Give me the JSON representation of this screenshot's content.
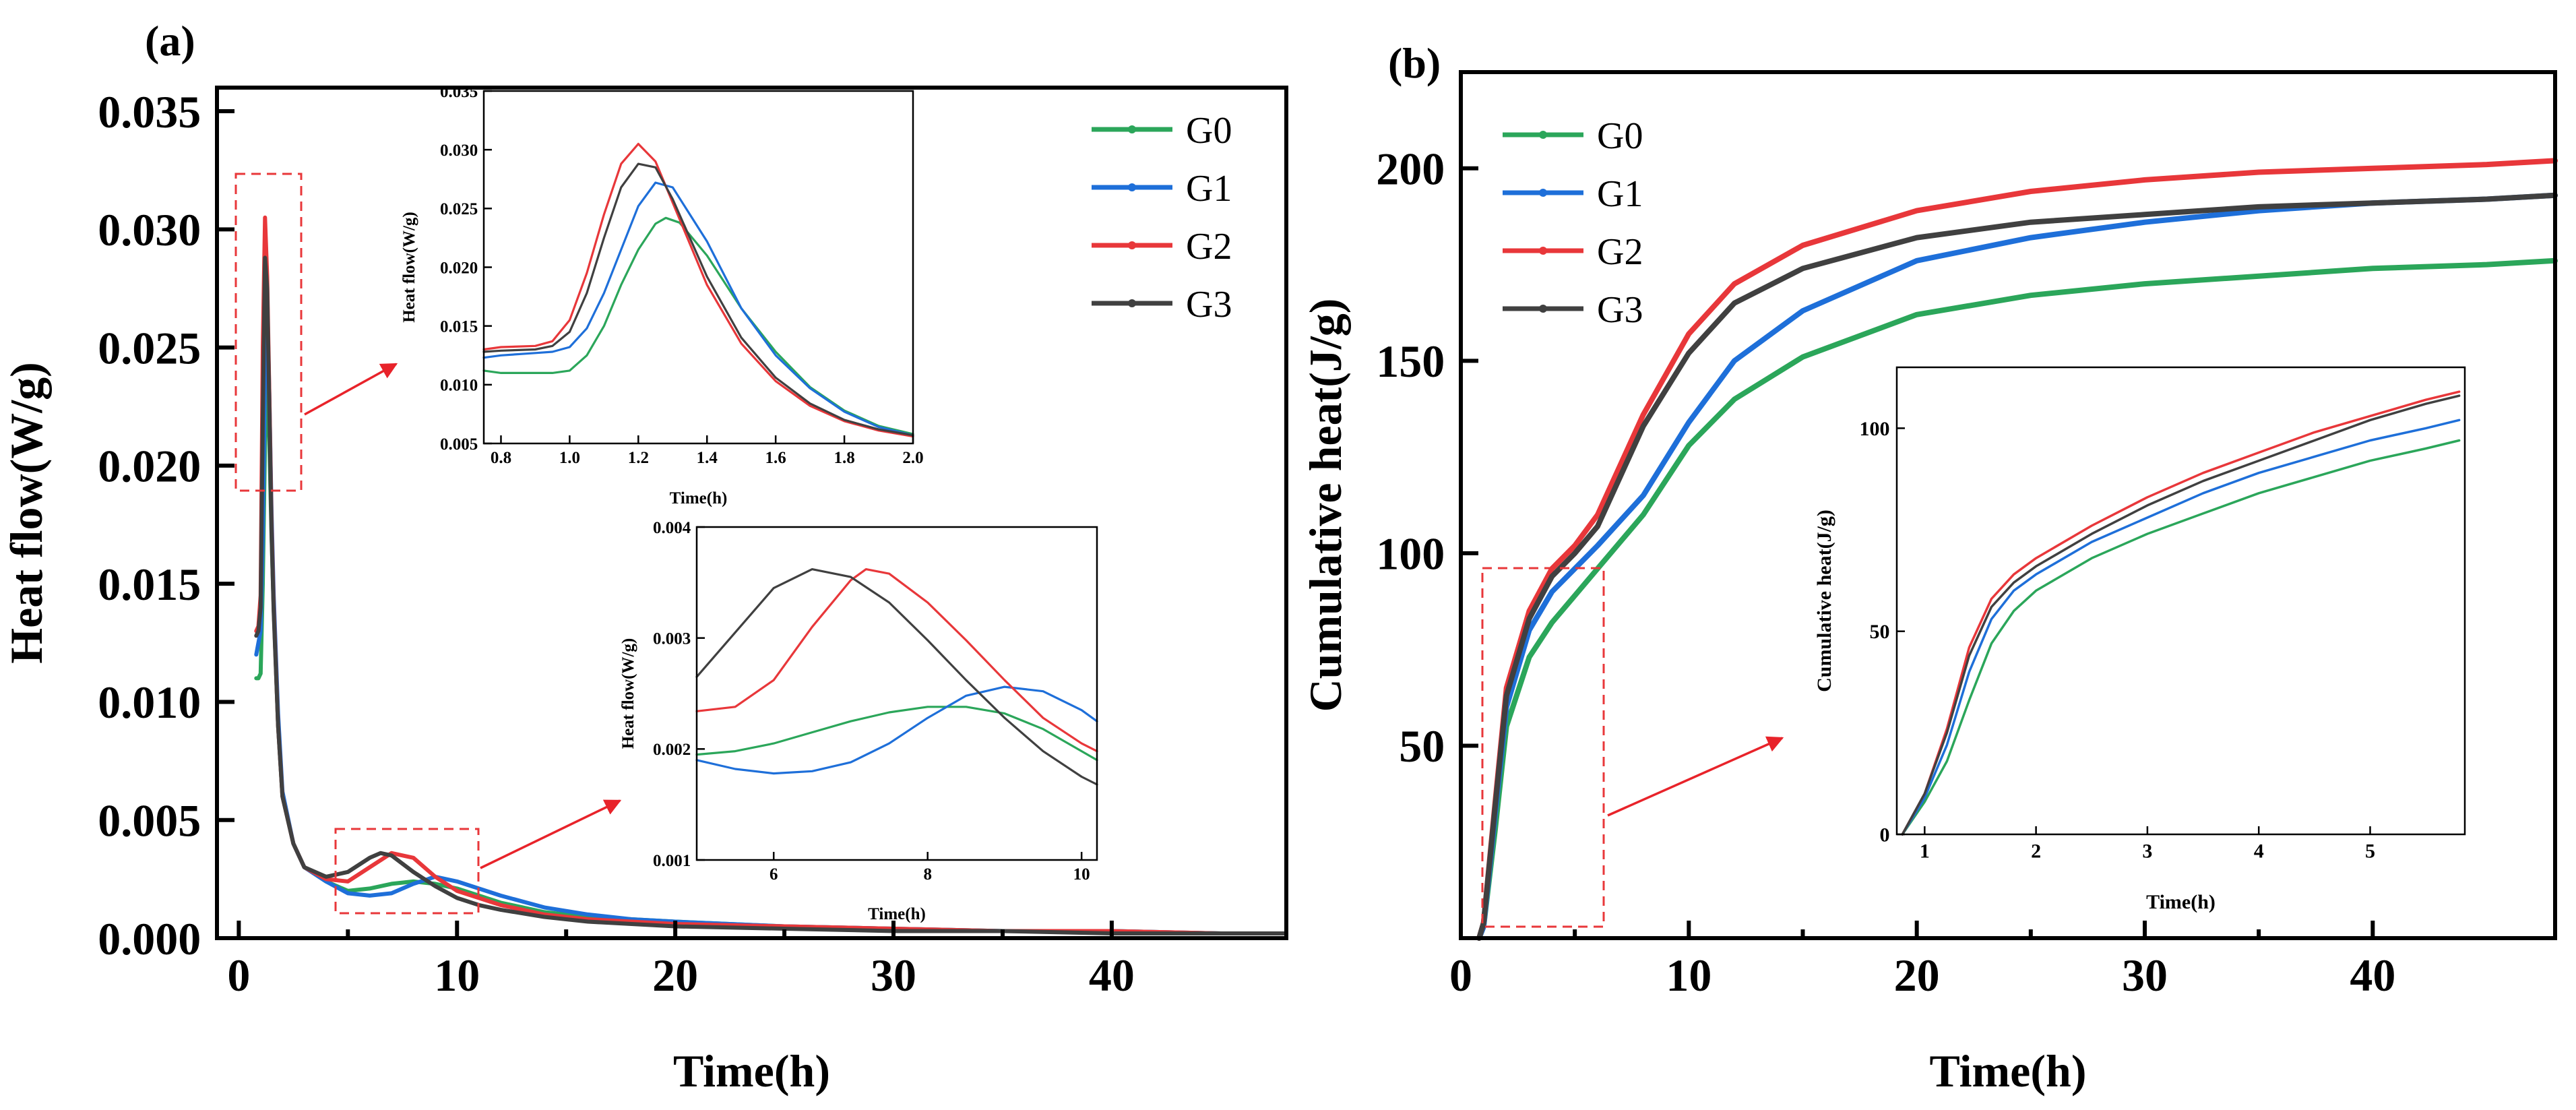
{
  "colors": {
    "G0": "#2BA65A",
    "G1": "#1E6FD9",
    "G2": "#E8373A",
    "G3": "#404040",
    "box": "#E8373A",
    "arrow": "#E8232A"
  },
  "chart_data": [
    {
      "id": "a-main",
      "panel_label": "(a)",
      "type": "line",
      "xlabel": "Time(h)",
      "ylabel": "Heat flow(W/g)",
      "xlim": [
        -1,
        48
      ],
      "ylim": [
        0,
        0.036
      ],
      "xticks": [
        "0",
        "10",
        "20",
        "30",
        "40"
      ],
      "yticks": [
        "0.000",
        "0.005",
        "0.010",
        "0.015",
        "0.020",
        "0.025",
        "0.030",
        "0.035"
      ],
      "legend": [
        "G0",
        "G1",
        "G2",
        "G3"
      ],
      "legend_position": "top-right",
      "series": [
        {
          "name": "G0",
          "x": [
            0.8,
            0.9,
            1.0,
            1.1,
            1.2,
            1.25,
            1.3,
            1.4,
            1.5,
            1.6,
            1.8,
            2.0,
            2.5,
            3,
            4,
            5,
            6,
            7,
            8,
            9,
            10,
            11,
            12,
            14,
            16,
            18,
            20,
            25,
            30,
            35,
            40,
            45,
            48
          ],
          "y": [
            0.011,
            0.011,
            0.0112,
            0.015,
            0.021,
            0.0242,
            0.0238,
            0.021,
            0.017,
            0.014,
            0.009,
            0.006,
            0.004,
            0.003,
            0.0024,
            0.002,
            0.0021,
            0.0023,
            0.0024,
            0.0023,
            0.0021,
            0.0018,
            0.0015,
            0.0011,
            0.0009,
            0.0008,
            0.0007,
            0.0005,
            0.0004,
            0.0003,
            0.0003,
            0.0002,
            0.0002
          ]
        },
        {
          "name": "G1",
          "x": [
            0.8,
            0.9,
            1.0,
            1.1,
            1.2,
            1.27,
            1.3,
            1.4,
            1.5,
            1.6,
            1.8,
            2.0,
            2.5,
            3,
            4,
            5,
            6,
            7,
            8,
            9,
            10,
            11,
            12,
            14,
            16,
            18,
            20,
            25,
            30,
            35,
            40,
            45,
            48
          ],
          "y": [
            0.012,
            0.0125,
            0.013,
            0.017,
            0.024,
            0.0272,
            0.027,
            0.023,
            0.018,
            0.0145,
            0.0095,
            0.0062,
            0.004,
            0.003,
            0.0024,
            0.0019,
            0.0018,
            0.0019,
            0.0023,
            0.0026,
            0.0024,
            0.0021,
            0.0018,
            0.0013,
            0.001,
            0.0008,
            0.0007,
            0.0005,
            0.0004,
            0.0003,
            0.0003,
            0.0002,
            0.0002
          ]
        },
        {
          "name": "G2",
          "x": [
            0.8,
            0.9,
            1.0,
            1.1,
            1.2,
            1.3,
            1.4,
            1.5,
            1.6,
            1.8,
            2.0,
            2.5,
            3,
            4,
            5,
            6,
            7,
            8,
            9,
            10,
            11,
            12,
            14,
            16,
            18,
            20,
            25,
            30,
            35,
            40,
            45,
            48
          ],
          "y": [
            0.013,
            0.0132,
            0.0145,
            0.025,
            0.0305,
            0.028,
            0.023,
            0.0175,
            0.014,
            0.009,
            0.006,
            0.004,
            0.003,
            0.0025,
            0.0024,
            0.003,
            0.0036,
            0.0034,
            0.0026,
            0.002,
            0.0017,
            0.0014,
            0.001,
            0.0008,
            0.0007,
            0.0006,
            0.0005,
            0.0004,
            0.0003,
            0.0003,
            0.0002,
            0.0002
          ]
        },
        {
          "name": "G3",
          "x": [
            0.8,
            0.9,
            1.0,
            1.1,
            1.2,
            1.3,
            1.4,
            1.5,
            1.6,
            1.8,
            2.0,
            2.5,
            3,
            4,
            5,
            6,
            6.5,
            7,
            8,
            9,
            10,
            11,
            12,
            14,
            16,
            18,
            20,
            25,
            30,
            35,
            40,
            45,
            48
          ],
          "y": [
            0.0128,
            0.013,
            0.014,
            0.022,
            0.0288,
            0.0275,
            0.0225,
            0.0172,
            0.0138,
            0.009,
            0.006,
            0.004,
            0.003,
            0.0026,
            0.0028,
            0.0034,
            0.0036,
            0.0035,
            0.0028,
            0.0022,
            0.0017,
            0.0014,
            0.0012,
            0.0009,
            0.0007,
            0.0006,
            0.0005,
            0.0004,
            0.0003,
            0.0003,
            0.0002,
            0.0002,
            0.0002
          ]
        }
      ]
    },
    {
      "id": "a-inset1",
      "type": "line",
      "xlabel": "Time(h)",
      "ylabel": "Heat flow(W/g)",
      "xlim": [
        0.75,
        2.0
      ],
      "ylim": [
        0.005,
        0.035
      ],
      "xticks": [
        "0.8",
        "1.0",
        "1.2",
        "1.4",
        "1.6",
        "1.8",
        "2.0"
      ],
      "yticks": [
        "0.005",
        "0.010",
        "0.015",
        "0.020",
        "0.025",
        "0.030",
        "0.035"
      ],
      "series": [
        {
          "name": "G0",
          "x": [
            0.75,
            0.8,
            0.9,
            0.95,
            1.0,
            1.05,
            1.1,
            1.15,
            1.2,
            1.25,
            1.28,
            1.32,
            1.4,
            1.5,
            1.6,
            1.7,
            1.8,
            1.9,
            2.0
          ],
          "y": [
            0.0112,
            0.011,
            0.011,
            0.011,
            0.0112,
            0.0125,
            0.015,
            0.0185,
            0.0215,
            0.0237,
            0.0242,
            0.0238,
            0.021,
            0.0165,
            0.0128,
            0.0098,
            0.0078,
            0.0065,
            0.0058
          ]
        },
        {
          "name": "G1",
          "x": [
            0.75,
            0.8,
            0.9,
            0.95,
            1.0,
            1.05,
            1.1,
            1.15,
            1.2,
            1.25,
            1.3,
            1.4,
            1.5,
            1.6,
            1.7,
            1.8,
            1.9,
            2.0
          ],
          "y": [
            0.0123,
            0.0125,
            0.0127,
            0.0128,
            0.0132,
            0.0148,
            0.0178,
            0.0215,
            0.0252,
            0.0272,
            0.0268,
            0.0222,
            0.0165,
            0.0125,
            0.0097,
            0.0077,
            0.0064,
            0.0057
          ]
        },
        {
          "name": "G2",
          "x": [
            0.75,
            0.8,
            0.9,
            0.95,
            1.0,
            1.05,
            1.1,
            1.15,
            1.2,
            1.25,
            1.3,
            1.4,
            1.5,
            1.6,
            1.7,
            1.8,
            1.9,
            2.0
          ],
          "y": [
            0.013,
            0.0132,
            0.0133,
            0.0137,
            0.0155,
            0.0195,
            0.0245,
            0.0288,
            0.0305,
            0.029,
            0.0255,
            0.0185,
            0.0135,
            0.0103,
            0.0082,
            0.0069,
            0.0061,
            0.0056
          ]
        },
        {
          "name": "G3",
          "x": [
            0.75,
            0.8,
            0.9,
            0.95,
            1.0,
            1.05,
            1.1,
            1.15,
            1.2,
            1.25,
            1.3,
            1.4,
            1.5,
            1.6,
            1.7,
            1.8,
            1.9,
            2.0
          ],
          "y": [
            0.0128,
            0.0129,
            0.013,
            0.0133,
            0.0145,
            0.0178,
            0.0225,
            0.0268,
            0.0288,
            0.0285,
            0.0258,
            0.0192,
            0.014,
            0.0106,
            0.0084,
            0.007,
            0.0062,
            0.0057
          ]
        }
      ]
    },
    {
      "id": "a-inset2",
      "type": "line",
      "xlabel": "Time(h)",
      "ylabel": "Heat flow(W/g)",
      "xlim": [
        5,
        10.2
      ],
      "ylim": [
        0.001,
        0.004
      ],
      "xticks": [
        "6",
        "8",
        "10"
      ],
      "yticks": [
        "0.001",
        "0.002",
        "0.003",
        "0.004"
      ],
      "series": [
        {
          "name": "G0",
          "x": [
            5,
            5.5,
            6,
            6.5,
            7,
            7.5,
            8,
            8.5,
            9,
            9.5,
            10,
            10.2
          ],
          "y": [
            0.00195,
            0.00198,
            0.00205,
            0.00215,
            0.00225,
            0.00233,
            0.00238,
            0.00238,
            0.00232,
            0.00218,
            0.00198,
            0.0019
          ]
        },
        {
          "name": "G1",
          "x": [
            5,
            5.5,
            6,
            6.5,
            7,
            7.5,
            8,
            8.5,
            9,
            9.5,
            10,
            10.2
          ],
          "y": [
            0.0019,
            0.00182,
            0.00178,
            0.0018,
            0.00188,
            0.00205,
            0.00228,
            0.00248,
            0.00256,
            0.00252,
            0.00235,
            0.00225
          ]
        },
        {
          "name": "G2",
          "x": [
            5,
            5.5,
            6,
            6.5,
            7,
            7.2,
            7.5,
            8,
            8.5,
            9,
            9.5,
            10,
            10.2
          ],
          "y": [
            0.00234,
            0.00238,
            0.00262,
            0.0031,
            0.00352,
            0.00362,
            0.00358,
            0.00332,
            0.00298,
            0.00262,
            0.00228,
            0.00205,
            0.00198
          ]
        },
        {
          "name": "G3",
          "x": [
            5,
            5.5,
            6,
            6.5,
            7,
            7.5,
            8,
            8.5,
            9,
            9.5,
            10,
            10.2
          ],
          "y": [
            0.00265,
            0.00305,
            0.00345,
            0.00362,
            0.00355,
            0.00332,
            0.00298,
            0.00262,
            0.00228,
            0.00198,
            0.00175,
            0.00168
          ]
        }
      ]
    },
    {
      "id": "b-main",
      "panel_label": "(b)",
      "type": "line",
      "xlabel": "Time(h)",
      "ylabel": "Cumulative heat(J/g)",
      "xlim": [
        0,
        48
      ],
      "ylim": [
        0,
        225
      ],
      "xticks": [
        "0",
        "10",
        "20",
        "30",
        "40"
      ],
      "yticks": [
        "50",
        "100",
        "150",
        "200"
      ],
      "legend": [
        "G0",
        "G1",
        "G2",
        "G3"
      ],
      "legend_position": "top-left",
      "series": [
        {
          "name": "G0",
          "x": [
            0.8,
            1.0,
            1.5,
            2,
            3,
            4,
            5,
            6,
            8,
            10,
            12,
            15,
            20,
            25,
            30,
            35,
            40,
            45,
            48
          ],
          "y": [
            0,
            3,
            28,
            55,
            73,
            82,
            89,
            96,
            110,
            128,
            140,
            151,
            162,
            167,
            170,
            172,
            174,
            175,
            176
          ]
        },
        {
          "name": "G1",
          "x": [
            0.8,
            1.0,
            1.5,
            2,
            3,
            4,
            5,
            6,
            8,
            10,
            12,
            15,
            20,
            25,
            30,
            35,
            40,
            45,
            48
          ],
          "y": [
            0,
            3,
            32,
            60,
            80,
            90,
            96,
            102,
            115,
            134,
            150,
            163,
            176,
            182,
            186,
            189,
            191,
            192,
            193
          ]
        },
        {
          "name": "G2",
          "x": [
            0.8,
            1.0,
            1.5,
            2,
            3,
            4,
            5,
            6,
            8,
            10,
            12,
            15,
            20,
            25,
            30,
            35,
            40,
            45,
            48
          ],
          "y": [
            0,
            4,
            35,
            65,
            85,
            96,
            102,
            110,
            136,
            157,
            170,
            180,
            189,
            194,
            197,
            199,
            200,
            201,
            202
          ]
        },
        {
          "name": "G3",
          "x": [
            0.8,
            1.0,
            1.5,
            2,
            3,
            4,
            5,
            6,
            8,
            10,
            12,
            15,
            20,
            25,
            30,
            35,
            40,
            45,
            48
          ],
          "y": [
            0,
            4,
            34,
            63,
            83,
            94,
            100,
            107,
            133,
            152,
            165,
            174,
            182,
            186,
            188,
            190,
            191,
            192,
            193
          ]
        }
      ]
    },
    {
      "id": "b-inset",
      "type": "line",
      "xlabel": "Time(h)",
      "ylabel": "Cumulative heat(J/g)",
      "xlim": [
        0.75,
        5.85
      ],
      "ylim": [
        0,
        115
      ],
      "xticks": [
        "1",
        "2",
        "3",
        "4",
        "5"
      ],
      "yticks": [
        "0",
        "50",
        "100"
      ],
      "series": [
        {
          "name": "G0",
          "x": [
            0.8,
            1.0,
            1.2,
            1.4,
            1.6,
            1.8,
            2.0,
            2.5,
            3,
            3.5,
            4,
            4.5,
            5,
            5.5,
            5.8
          ],
          "y": [
            0,
            8,
            18,
            33,
            47,
            55,
            60,
            68,
            74,
            79,
            84,
            88,
            92,
            95,
            97
          ]
        },
        {
          "name": "G1",
          "x": [
            0.8,
            1.0,
            1.2,
            1.4,
            1.6,
            1.8,
            2.0,
            2.5,
            3,
            3.5,
            4,
            4.5,
            5,
            5.5,
            5.8
          ],
          "y": [
            0,
            9,
            22,
            40,
            53,
            60,
            64,
            72,
            78,
            84,
            89,
            93,
            97,
            100,
            102
          ]
        },
        {
          "name": "G2",
          "x": [
            0.8,
            1.0,
            1.2,
            1.4,
            1.6,
            1.8,
            2.0,
            2.5,
            3,
            3.5,
            4,
            4.5,
            5,
            5.5,
            5.8
          ],
          "y": [
            0,
            10,
            26,
            46,
            58,
            64,
            68,
            76,
            83,
            89,
            94,
            99,
            103,
            107,
            109
          ]
        },
        {
          "name": "G3",
          "x": [
            0.8,
            1.0,
            1.2,
            1.4,
            1.6,
            1.8,
            2.0,
            2.5,
            3,
            3.5,
            4,
            4.5,
            5,
            5.5,
            5.8
          ],
          "y": [
            0,
            10,
            25,
            44,
            56,
            62,
            66,
            74,
            81,
            87,
            92,
            97,
            102,
            106,
            108
          ]
        }
      ]
    }
  ]
}
